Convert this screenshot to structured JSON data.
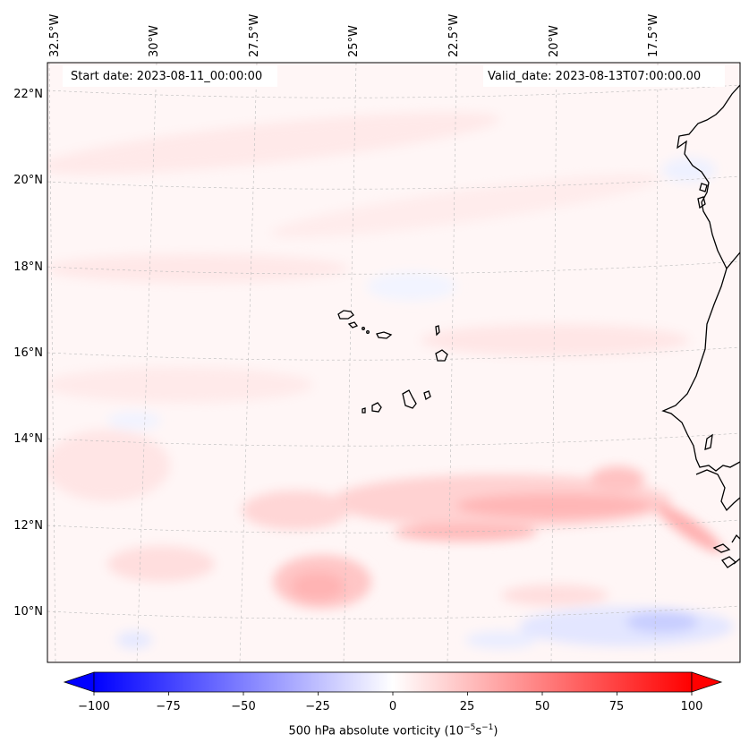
{
  "map": {
    "start_label": "Start date: 2023-08-11_00:00:00",
    "valid_label": "Valid_date: 2023-08-13T07:00:00.00",
    "lon_labels": [
      "32.5°W",
      "30°W",
      "27.5°W",
      "25°W",
      "22.5°W",
      "20°W",
      "17.5°W"
    ],
    "lat_labels": [
      "22°N",
      "20°N",
      "18°N",
      "16°N",
      "14°N",
      "12°N",
      "10°N"
    ],
    "field": "500 hPa absolute vorticity",
    "features": [
      "cape-verde-islands",
      "west-africa-coastline"
    ]
  },
  "colorbar": {
    "label_prefix": "500 hPa absolute vorticity (10",
    "exp1": "−5",
    "label_mid": "s",
    "exp2": "−1",
    "label_suffix": ")",
    "ticks": [
      "−100",
      "−75",
      "−50",
      "−25",
      "0",
      "25",
      "50",
      "75",
      "100"
    ],
    "vmin": -100,
    "vmax": 100,
    "colors": {
      "min": "#0000ff",
      "mid": "#ffffff",
      "max": "#ff0000"
    }
  }
}
